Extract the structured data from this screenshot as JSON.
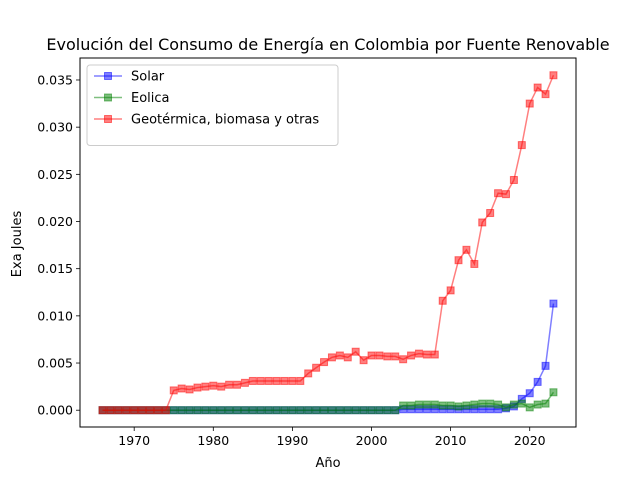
{
  "chart_data": {
    "type": "line",
    "title": "Evolución del Consumo de Energía en Colombia por Fuente Renovable",
    "xlabel": "Año",
    "ylabel": "Exa Joules",
    "xlim": [
      1963.15,
      2025.85
    ],
    "ylim": [
      -0.00178,
      0.03733
    ],
    "xticks": [
      1970,
      1980,
      1990,
      2000,
      2010,
      2020
    ],
    "xtick_labels": [
      "1970",
      "1980",
      "1990",
      "2000",
      "2010",
      "2020"
    ],
    "yticks": [
      0.0,
      0.005,
      0.01,
      0.015,
      0.02,
      0.025,
      0.03,
      0.035
    ],
    "ytick_labels": [
      "0.000",
      "0.005",
      "0.010",
      "0.015",
      "0.020",
      "0.025",
      "0.030",
      "0.035"
    ],
    "grid": false,
    "legend_position": "top-left",
    "marker": "square",
    "x": [
      1966,
      1967,
      1968,
      1969,
      1970,
      1971,
      1972,
      1973,
      1974,
      1975,
      1976,
      1977,
      1978,
      1979,
      1980,
      1981,
      1982,
      1983,
      1984,
      1985,
      1986,
      1987,
      1988,
      1989,
      1990,
      1991,
      1992,
      1993,
      1994,
      1995,
      1996,
      1997,
      1998,
      1999,
      2000,
      2001,
      2002,
      2003,
      2004,
      2005,
      2006,
      2007,
      2008,
      2009,
      2010,
      2011,
      2012,
      2013,
      2014,
      2015,
      2016,
      2017,
      2018,
      2019,
      2020,
      2021,
      2022,
      2023
    ],
    "series": [
      {
        "name": "Solar",
        "color": "#0000ff",
        "values": [
          0,
          0,
          0,
          0,
          0,
          0,
          0,
          0,
          0,
          0,
          0,
          0,
          0,
          0,
          0,
          0,
          0,
          0,
          0,
          0,
          0,
          0,
          0,
          0,
          0,
          0,
          0,
          0,
          0,
          0,
          0,
          0,
          0,
          0,
          0,
          0,
          0,
          0,
          0.0001,
          0.0001,
          0.0001,
          0.0001,
          0.0001,
          0.0001,
          0.0001,
          0.0001,
          0.0001,
          0.0001,
          0.0001,
          0.0001,
          0.0001,
          0.0002,
          0.0004,
          0.0012,
          0.0018,
          0.003,
          0.0047,
          0.0113
        ]
      },
      {
        "name": "Eolica",
        "color": "#008000",
        "values": [
          0,
          0,
          0,
          0,
          0,
          0,
          0,
          0,
          0,
          0,
          0,
          0,
          0,
          0,
          0,
          0,
          0,
          0,
          0,
          0,
          0,
          0,
          0,
          0,
          0,
          0,
          0,
          0,
          0,
          0,
          0,
          0,
          0,
          0,
          0,
          0,
          0,
          0,
          0.0005,
          0.0005,
          0.0006,
          0.0006,
          0.0006,
          0.0005,
          0.0005,
          0.0004,
          0.0005,
          0.0006,
          0.0007,
          0.0007,
          0.0006,
          0.0003,
          0.0006,
          0.0007,
          0.0003,
          0.0006,
          0.0007,
          0.0019
        ]
      },
      {
        "name": "Geotérmica, biomasa y otras",
        "color": "#ff0000",
        "values": [
          0,
          0,
          0,
          0,
          0,
          0,
          0,
          0,
          0,
          0.0021,
          0.0023,
          0.0022,
          0.0024,
          0.0025,
          0.0026,
          0.0025,
          0.0027,
          0.0027,
          0.0029,
          0.0031,
          0.0031,
          0.0031,
          0.0031,
          0.0031,
          0.0031,
          0.0031,
          0.0039,
          0.0045,
          0.0051,
          0.0056,
          0.0058,
          0.0056,
          0.0062,
          0.0053,
          0.0058,
          0.0058,
          0.0057,
          0.0057,
          0.0054,
          0.0058,
          0.006,
          0.0059,
          0.0059,
          0.0116,
          0.0127,
          0.0159,
          0.017,
          0.0155,
          0.0199,
          0.0209,
          0.023,
          0.0229,
          0.0244,
          0.0281,
          0.0325,
          0.0342,
          0.0335,
          0.0355
        ]
      }
    ]
  }
}
